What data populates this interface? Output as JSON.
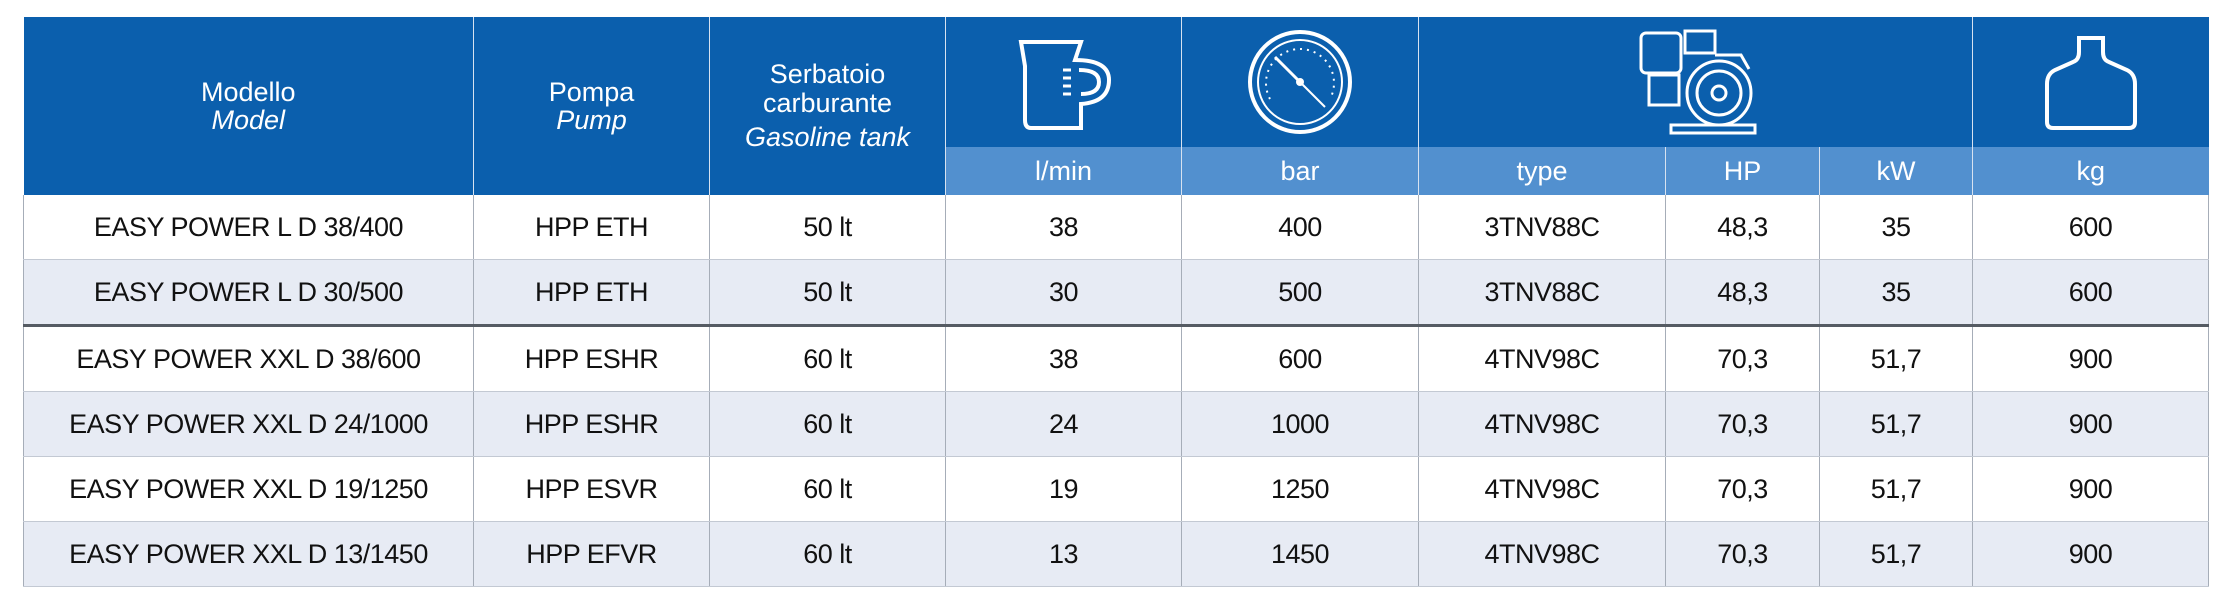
{
  "header": {
    "columns": [
      {
        "it": "Modello",
        "en": "Model"
      },
      {
        "it": "Pompa",
        "en": "Pump"
      },
      {
        "it": "Serbatoio carburante",
        "en": "Gasoline tank"
      }
    ],
    "units": [
      "l/min",
      "bar",
      "type",
      "HP",
      "kW",
      "kg"
    ]
  },
  "rows": [
    [
      "EASY POWER L D 38/400",
      "HPP ETH",
      "50 lt",
      "38",
      "400",
      "3TNV88C",
      "48,3",
      "35",
      "600"
    ],
    [
      "EASY POWER L D 30/500",
      "HPP ETH",
      "50 lt",
      "30",
      "500",
      "3TNV88C",
      "48,3",
      "35",
      "600"
    ],
    [
      "EASY POWER XXL D 38/600",
      "HPP ESHR",
      "60 lt",
      "38",
      "600",
      "4TNV98C",
      "70,3",
      "51,7",
      "900"
    ],
    [
      "EASY POWER XXL D 24/1000",
      "HPP ESHR",
      "60 lt",
      "24",
      "1000",
      "4TNV98C",
      "70,3",
      "51,7",
      "900"
    ],
    [
      "EASY POWER XXL D 19/1250",
      "HPP ESVR",
      "60 lt",
      "19",
      "1250",
      "4TNV98C",
      "70,3",
      "51,7",
      "900"
    ],
    [
      "EASY POWER XXL D 13/1450",
      "HPP EFVR",
      "60 lt",
      "13",
      "1450",
      "4TNV98C",
      "70,3",
      "51,7",
      "900"
    ]
  ]
}
